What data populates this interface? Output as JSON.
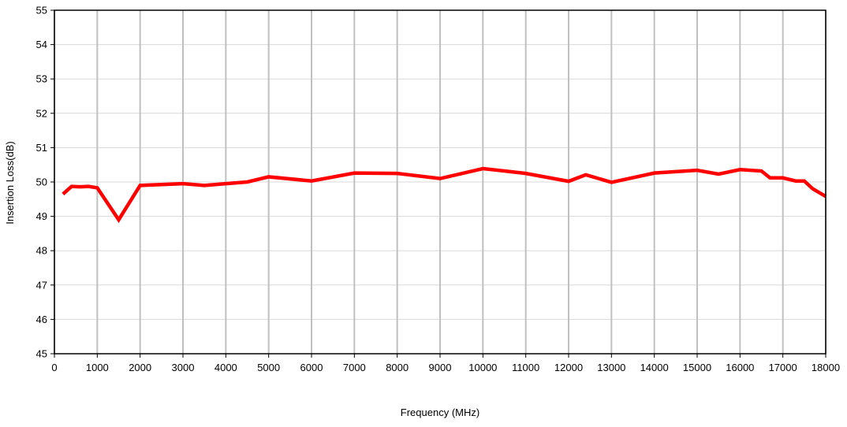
{
  "chart_data": {
    "type": "line",
    "title": "",
    "xlabel": "Frequency (MHz)",
    "ylabel": "Insertion Loss(dB)",
    "xlim": [
      0,
      18000
    ],
    "ylim": [
      45,
      55
    ],
    "x_ticks": [
      0,
      1000,
      2000,
      3000,
      4000,
      5000,
      6000,
      7000,
      8000,
      9000,
      10000,
      11000,
      12000,
      13000,
      14000,
      15000,
      16000,
      17000,
      18000
    ],
    "y_ticks": [
      45,
      46,
      47,
      48,
      49,
      50,
      51,
      52,
      53,
      54,
      55
    ],
    "grid": {
      "vertical": true,
      "horizontal": true
    },
    "legend": "none",
    "colors": {
      "line": "#ff0000",
      "vgrid": "#c0c0c0",
      "hgrid": "#d9d9d9",
      "frame": "#000000"
    },
    "series": [
      {
        "x": [
          200,
          400,
          600,
          800,
          1000,
          1500,
          2000,
          3000,
          3500,
          4000,
          4500,
          5000,
          6000,
          7000,
          8000,
          9000,
          10000,
          11000,
          12000,
          12400,
          13000,
          14000,
          15000,
          15500,
          16000,
          16500,
          16700,
          17000,
          17300,
          17500,
          17700,
          18000
        ],
        "y": [
          49.65,
          49.87,
          49.86,
          49.87,
          49.83,
          48.9,
          49.9,
          49.95,
          49.9,
          49.95,
          50.0,
          50.15,
          50.03,
          50.26,
          50.25,
          50.1,
          50.39,
          50.25,
          50.02,
          50.21,
          49.99,
          50.26,
          50.34,
          50.23,
          50.36,
          50.32,
          50.12,
          50.12,
          50.03,
          50.03,
          49.8,
          49.58
        ]
      }
    ]
  }
}
